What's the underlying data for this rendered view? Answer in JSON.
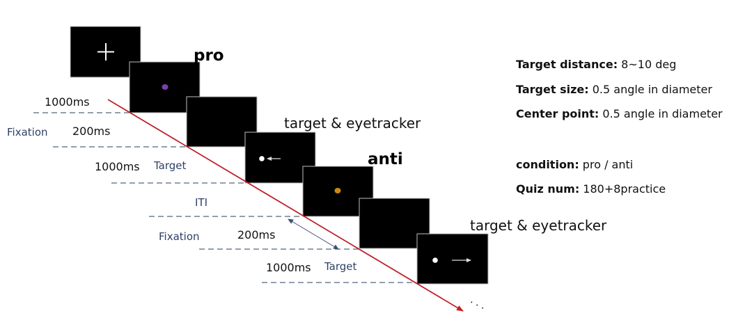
{
  "condition_labels": {
    "pro": "pro",
    "anti": "anti"
  },
  "stage_labels": {
    "pro_target": "target & eyetracker",
    "anti_target": "target & eyetracker"
  },
  "timeline_pro": {
    "fixation_duration": "1000ms",
    "fixation_label": "Fixation",
    "gap_duration": "200ms",
    "target_duration": "1000ms",
    "target_label": "Target"
  },
  "timeline_anti": {
    "iti_label": "ITI",
    "fixation_label": "Fixation",
    "gap_duration": "200ms",
    "target_duration": "1000ms",
    "target_label": "Target"
  },
  "continuation": ". . .",
  "info": {
    "target_distance": {
      "label": "Target distance:",
      "value": " 8~10 deg"
    },
    "target_size": {
      "label": "Target size:",
      "value": " 0.5 angle in diameter"
    },
    "center_point": {
      "label": "Center point:",
      "value": " 0.5 angle in diameter"
    },
    "condition": {
      "label": "condition:",
      "value": " pro / anti"
    },
    "quiz_num": {
      "label": "Quiz num:",
      "value": " 180+8practice"
    }
  },
  "colors": {
    "screen": "#000000",
    "timeline_arrow": "#c0202a",
    "pro_dot": "#7a3fb0",
    "anti_dot": "#c98a0e",
    "target_dot": "#ffffff",
    "dashed_line": "#6f7f93",
    "blue_label": "#2f3f66"
  },
  "icons": {
    "fixation": "plus-icon",
    "pro_direction": "arrow-left-icon",
    "anti_direction": "arrow-right-icon"
  }
}
